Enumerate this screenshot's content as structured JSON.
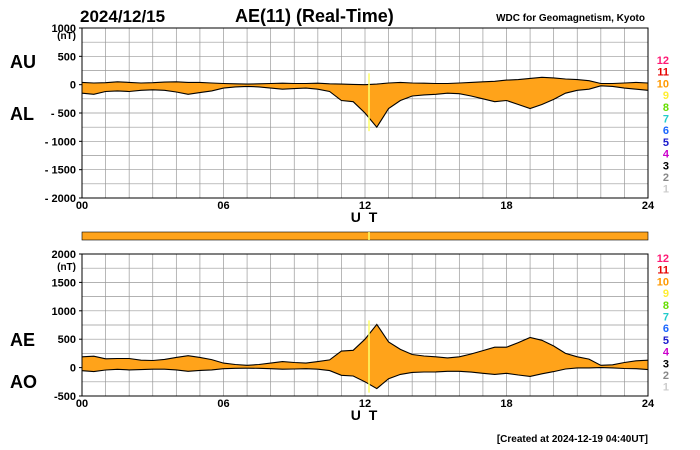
{
  "header": {
    "date": "2024/12/15",
    "title": "AE(11) (Real-Time)",
    "source": "WDC for Geomagnetism, Kyoto"
  },
  "footer": {
    "created": "[Created at 2024-12-19 04:40UT]"
  },
  "colors": {
    "fill": "#ffa31a",
    "outline": "#000000",
    "highlight": "#ffff66",
    "grid": "#999999"
  },
  "kp_scale": [
    {
      "label": "12",
      "color": "#ff1a75"
    },
    {
      "label": "11",
      "color": "#e60000"
    },
    {
      "label": "10",
      "color": "#ff9900"
    },
    {
      "label": "9",
      "color": "#ffee33"
    },
    {
      "label": "8",
      "color": "#66dd00"
    },
    {
      "label": "7",
      "color": "#22cccc"
    },
    {
      "label": "6",
      "color": "#1a66ff"
    },
    {
      "label": "5",
      "color": "#1a1acc"
    },
    {
      "label": "4",
      "color": "#cc00cc"
    },
    {
      "label": "3",
      "color": "#000000"
    },
    {
      "label": "2",
      "color": "#888888"
    },
    {
      "label": "1",
      "color": "#cccccc"
    }
  ],
  "chart_data": [
    {
      "type": "area",
      "panel": "AU/AL",
      "xlabel": "U T",
      "ylabel": "(nT)",
      "xlim": [
        0,
        24
      ],
      "ylim": [
        -2000,
        1000
      ],
      "xticks": [
        "00",
        "06",
        "12",
        "18",
        "24"
      ],
      "yticks": [
        "1000",
        "500",
        "0",
        "- 500",
        "- 1000",
        "- 1500",
        "- 2000"
      ],
      "grid": true,
      "hour_marker": 12.17,
      "x": [
        0,
        0.5,
        1,
        1.5,
        2,
        2.5,
        3,
        3.5,
        4,
        4.5,
        5,
        5.5,
        6,
        6.5,
        7,
        7.5,
        8,
        8.5,
        9,
        9.5,
        10,
        10.5,
        11,
        11.5,
        12,
        12.5,
        13,
        13.5,
        14,
        14.5,
        15,
        15.5,
        16,
        16.5,
        17,
        17.5,
        18,
        18.5,
        19,
        19.5,
        20,
        20.5,
        21,
        21.5,
        22,
        22.5,
        23,
        23.5,
        24
      ],
      "series": [
        {
          "name": "AU",
          "values": [
            40,
            30,
            35,
            50,
            40,
            30,
            35,
            45,
            50,
            40,
            40,
            30,
            20,
            15,
            10,
            15,
            20,
            25,
            20,
            20,
            25,
            15,
            10,
            5,
            0,
            10,
            30,
            40,
            30,
            25,
            20,
            20,
            30,
            40,
            50,
            60,
            80,
            90,
            110,
            130,
            120,
            100,
            90,
            70,
            20,
            20,
            30,
            40,
            30
          ]
        },
        {
          "name": "AL",
          "values": [
            -150,
            -170,
            -120,
            -110,
            -120,
            -100,
            -90,
            -100,
            -130,
            -170,
            -140,
            -110,
            -60,
            -40,
            -30,
            -40,
            -60,
            -80,
            -70,
            -60,
            -80,
            -120,
            -280,
            -300,
            -500,
            -750,
            -420,
            -280,
            -200,
            -180,
            -170,
            -150,
            -160,
            -200,
            -250,
            -300,
            -280,
            -350,
            -420,
            -350,
            -260,
            -150,
            -100,
            -80,
            -20,
            -30,
            -60,
            -80,
            -100
          ]
        }
      ]
    },
    {
      "type": "area",
      "panel": "AE/AO",
      "xlabel": "U T",
      "ylabel": "(nT)",
      "xlim": [
        0,
        24
      ],
      "ylim": [
        -500,
        2000
      ],
      "xticks": [
        "00",
        "06",
        "12",
        "18",
        "24"
      ],
      "yticks": [
        "2000",
        "1500",
        "1000",
        "500",
        "0",
        "-500"
      ],
      "grid": true,
      "hour_marker": 12.17,
      "x": [
        0,
        0.5,
        1,
        1.5,
        2,
        2.5,
        3,
        3.5,
        4,
        4.5,
        5,
        5.5,
        6,
        6.5,
        7,
        7.5,
        8,
        8.5,
        9,
        9.5,
        10,
        10.5,
        11,
        11.5,
        12,
        12.5,
        13,
        13.5,
        14,
        14.5,
        15,
        15.5,
        16,
        16.5,
        17,
        17.5,
        18,
        18.5,
        19,
        19.5,
        20,
        20.5,
        21,
        21.5,
        22,
        22.5,
        23,
        23.5,
        24
      ],
      "series": [
        {
          "name": "AE",
          "values": [
            190,
            200,
            155,
            160,
            160,
            130,
            125,
            145,
            180,
            210,
            180,
            140,
            80,
            55,
            40,
            55,
            80,
            105,
            90,
            80,
            105,
            135,
            290,
            305,
            500,
            760,
            450,
            320,
            230,
            205,
            190,
            170,
            190,
            240,
            300,
            360,
            360,
            440,
            530,
            480,
            380,
            250,
            190,
            150,
            40,
            50,
            90,
            120,
            130
          ]
        },
        {
          "name": "AO",
          "values": [
            -55,
            -70,
            -42,
            -30,
            -40,
            -35,
            -28,
            -28,
            -40,
            -65,
            -50,
            -40,
            -20,
            -12,
            -10,
            -12,
            -20,
            -28,
            -25,
            -20,
            -28,
            -52,
            -135,
            -148,
            -250,
            -370,
            -195,
            -120,
            -85,
            -78,
            -75,
            -65,
            -65,
            -80,
            -100,
            -120,
            -100,
            -130,
            -155,
            -110,
            -70,
            -25,
            -5,
            -5,
            0,
            -5,
            -15,
            -20,
            -35
          ]
        }
      ]
    }
  ]
}
